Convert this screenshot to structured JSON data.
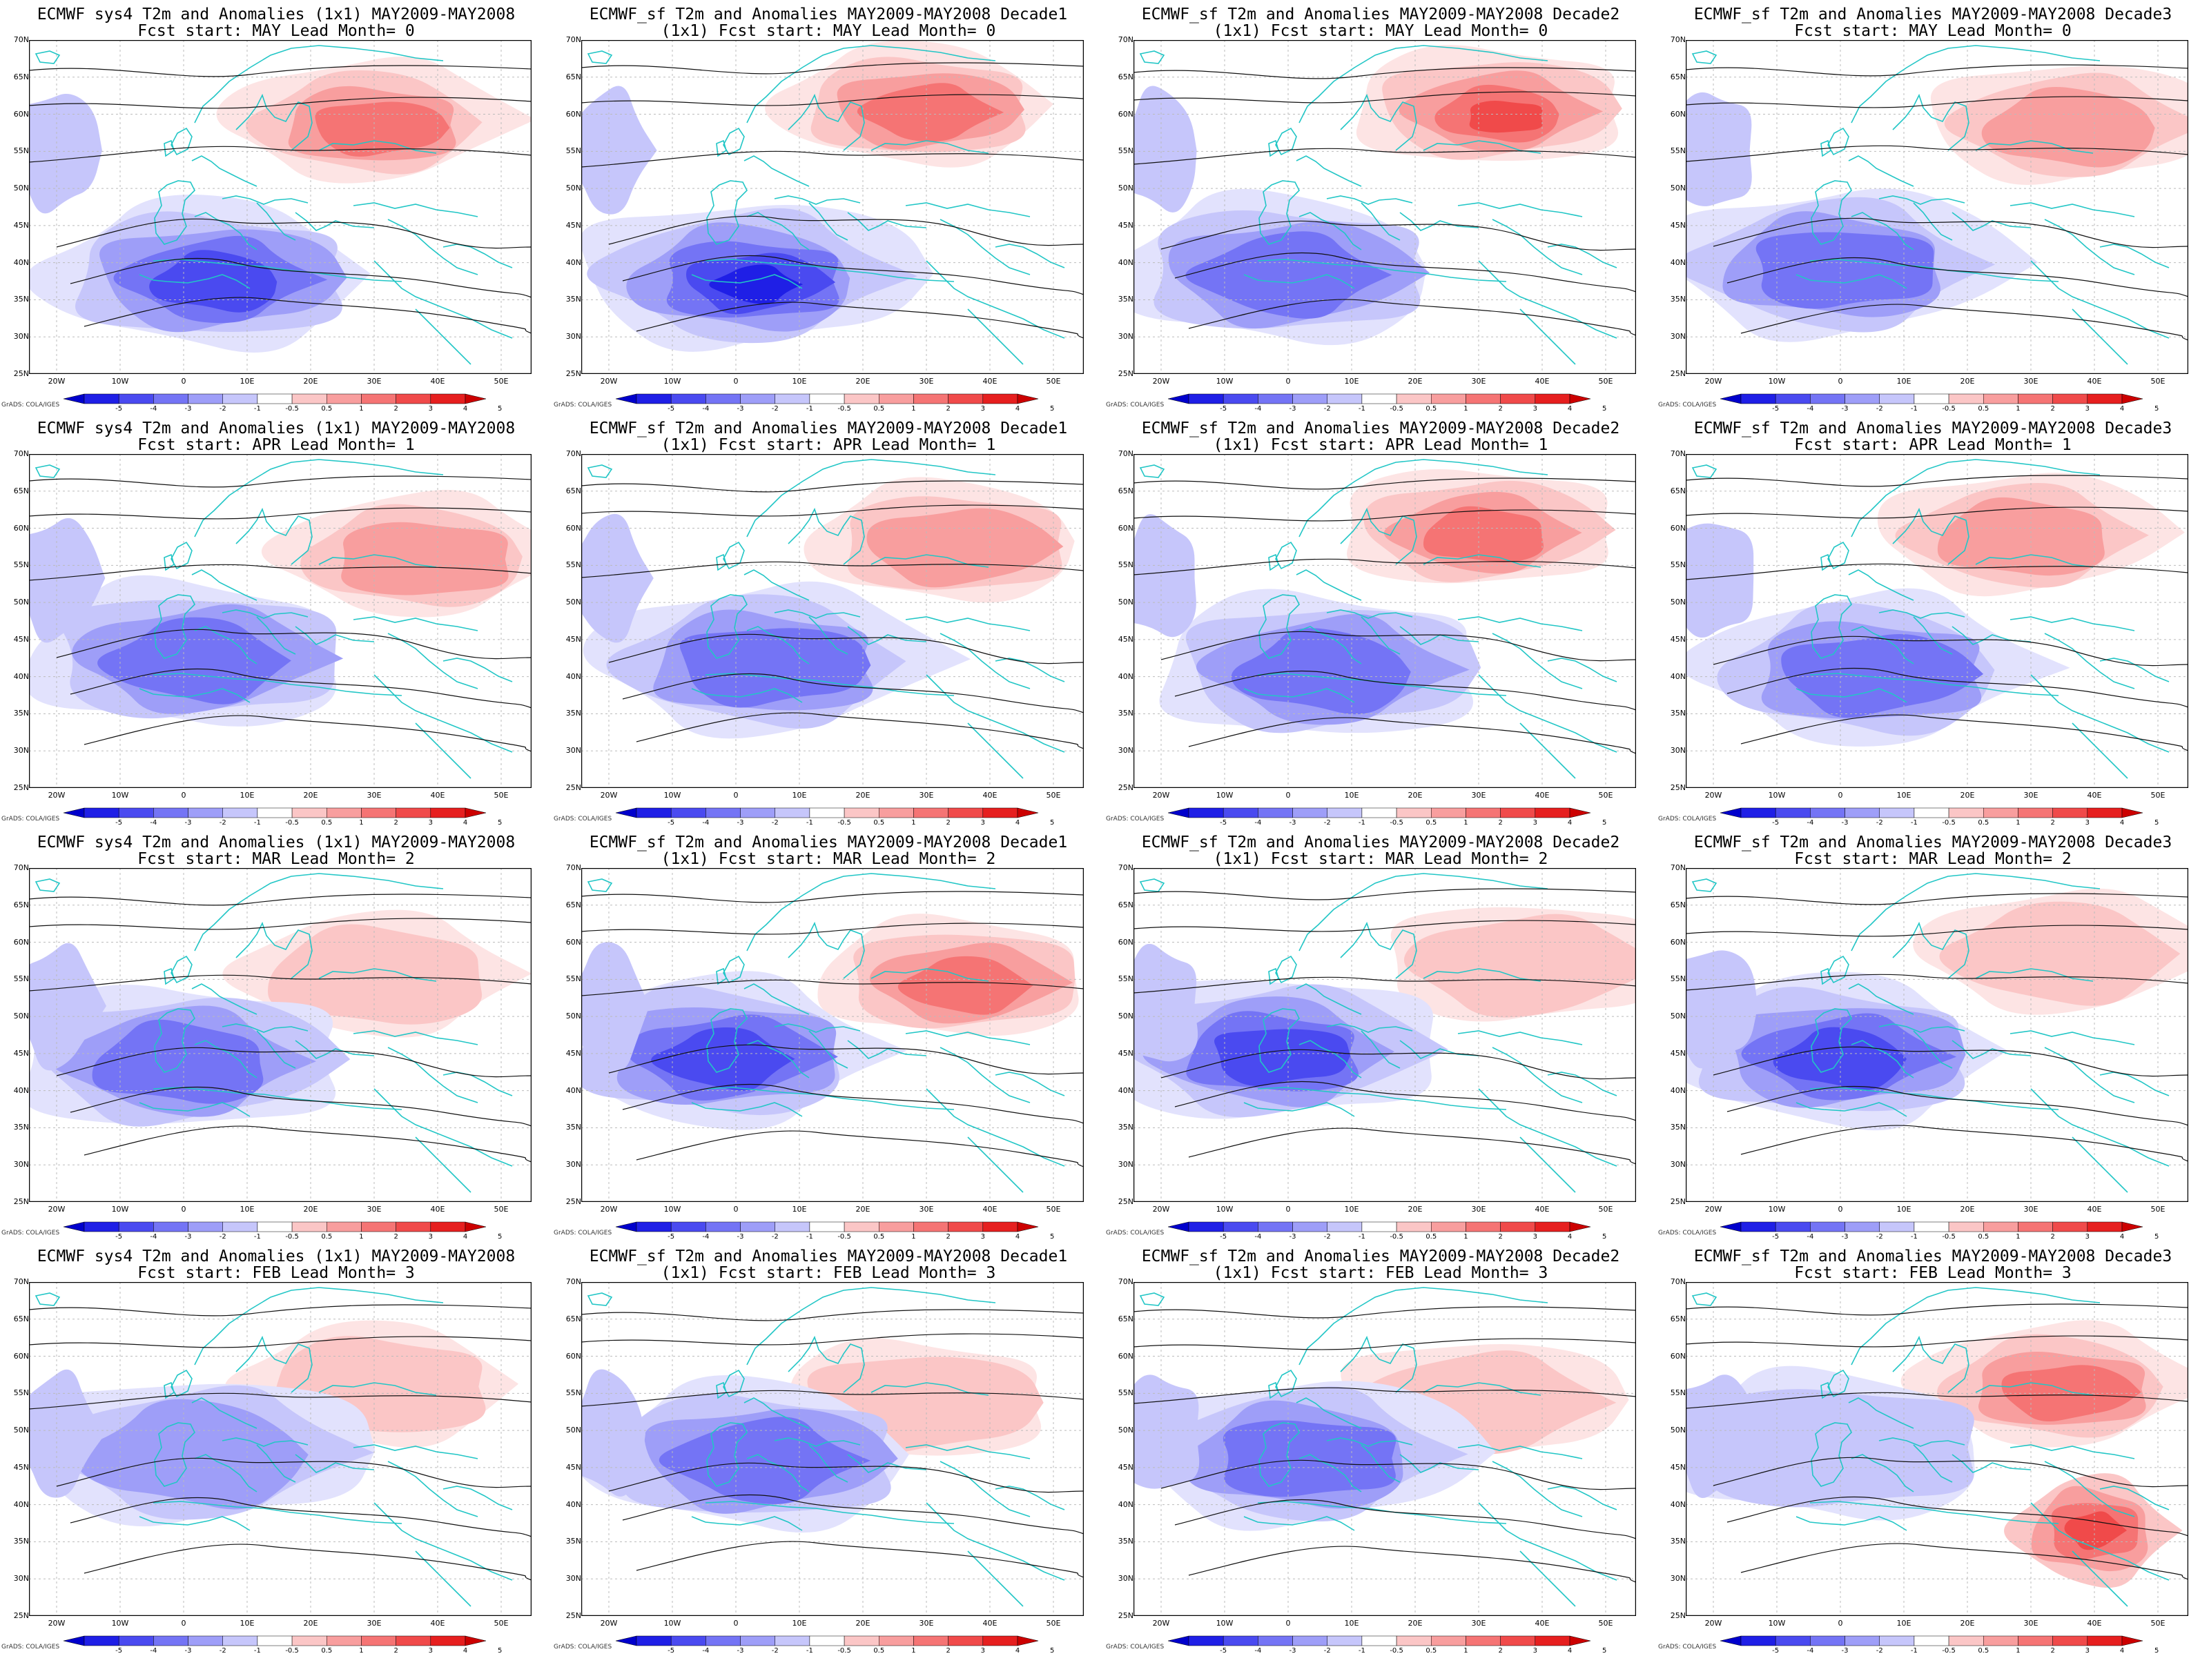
{
  "colorbar": {
    "note": "GrADS: COLA/IGES",
    "ticks": [
      "-5",
      "-4",
      "-3",
      "-2",
      "-1",
      "-0.5",
      "0.5",
      "1",
      "2",
      "3",
      "4",
      "5"
    ],
    "colors": [
      "#0000cc",
      "#1f1fe6",
      "#4a4af0",
      "#7474f5",
      "#9e9ef8",
      "#c6c6fb",
      "#ffffff",
      "#fbc6c6",
      "#f89e9e",
      "#f57474",
      "#f04a4a",
      "#e61f1f",
      "#cc0000"
    ]
  },
  "axes": {
    "lat_labels": [
      "70N",
      "65N",
      "60N",
      "55N",
      "50N",
      "45N",
      "40N",
      "35N",
      "30N",
      "25N"
    ],
    "lon_labels": [
      "20W",
      "10W",
      "0",
      "10E",
      "20E",
      "30E",
      "40E",
      "50E"
    ]
  },
  "panels": [
    {
      "title1": "ECMWF sys4 T2m and Anomalies (1x1) MAY2009-MAY2008",
      "title2": "Fcst start: MAY  Lead Month= 0",
      "warm": 0.8,
      "cold": 0.8
    },
    {
      "title1": "ECMWF_sf T2m and Anomalies MAY2009-MAY2008 Decade1",
      "title2": "(1x1) Fcst start: MAY  Lead Month= 0",
      "warm": 0.8,
      "cold": 1.0
    },
    {
      "title1": "ECMWF_sf T2m and Anomalies MAY2009-MAY2008 Decade2",
      "title2": "(1x1) Fcst start: MAY  Lead Month= 0",
      "warm": 1.0,
      "cold": 0.6
    },
    {
      "title1": "ECMWF_sf T2m and Anomalies MAY2009-MAY2008 Decade3",
      "title2": "Fcst start: MAY  Lead Month= 0",
      "warm": 0.6,
      "cold": 0.7
    },
    {
      "title1": "ECMWF sys4 T2m and Anomalies (1x1) MAY2009-MAY2008",
      "title2": "Fcst start: APR  Lead Month= 1",
      "warm": 0.6,
      "cold": 0.7
    },
    {
      "title1": "ECMWF_sf T2m and Anomalies MAY2009-MAY2008 Decade1",
      "title2": "(1x1) Fcst start: APR  Lead Month= 1",
      "warm": 0.5,
      "cold": 0.7
    },
    {
      "title1": "ECMWF_sf T2m and Anomalies MAY2009-MAY2008 Decade2",
      "title2": "(1x1) Fcst start: APR  Lead Month= 1",
      "warm": 0.7,
      "cold": 0.7
    },
    {
      "title1": "ECMWF_sf T2m and Anomalies MAY2009-MAY2008 Decade3",
      "title2": "Fcst start: APR  Lead Month= 1",
      "warm": 0.6,
      "cold": 0.7
    },
    {
      "title1": "ECMWF sys4 T2m and Anomalies (1x1) MAY2009-MAY2008",
      "title2": "Fcst start: MAR  Lead Month= 2",
      "warm": 0.3,
      "cold": 0.7
    },
    {
      "title1": "ECMWF_sf T2m and Anomalies MAY2009-MAY2008 Decade1",
      "title2": "(1x1) Fcst start: MAR  Lead Month= 2",
      "warm": 0.7,
      "cold": 0.8
    },
    {
      "title1": "ECMWF_sf T2m and Anomalies MAY2009-MAY2008 Decade2",
      "title2": "(1x1) Fcst start: MAR  Lead Month= 2",
      "warm": 0.4,
      "cold": 0.8
    },
    {
      "title1": "ECMWF_sf T2m and Anomalies MAY2009-MAY2008 Decade3",
      "title2": "Fcst start: MAR  Lead Month= 2",
      "warm": 0.3,
      "cold": 0.8
    },
    {
      "title1": "ECMWF sys4 T2m and Anomalies (1x1) MAY2009-MAY2008",
      "title2": "Fcst start: FEB  Lead Month= 3",
      "warm": 0.3,
      "cold": 0.5
    },
    {
      "title1": "ECMWF_sf T2m and Anomalies MAY2009-MAY2008 Decade1",
      "title2": "(1x1) Fcst start: FEB  Lead Month= 3",
      "warm": 0.3,
      "cold": 0.7
    },
    {
      "title1": "ECMWF_sf T2m and Anomalies MAY2009-MAY2008 Decade2",
      "title2": "(1x1) Fcst start: FEB  Lead Month= 3",
      "warm": 0.3,
      "cold": 0.6
    },
    {
      "title1": "ECMWF_sf T2m and Anomalies MAY2009-MAY2008 Decade3",
      "title2": "Fcst start: FEB  Lead Month= 3",
      "warm": 0.7,
      "cold": 0.4
    }
  ]
}
